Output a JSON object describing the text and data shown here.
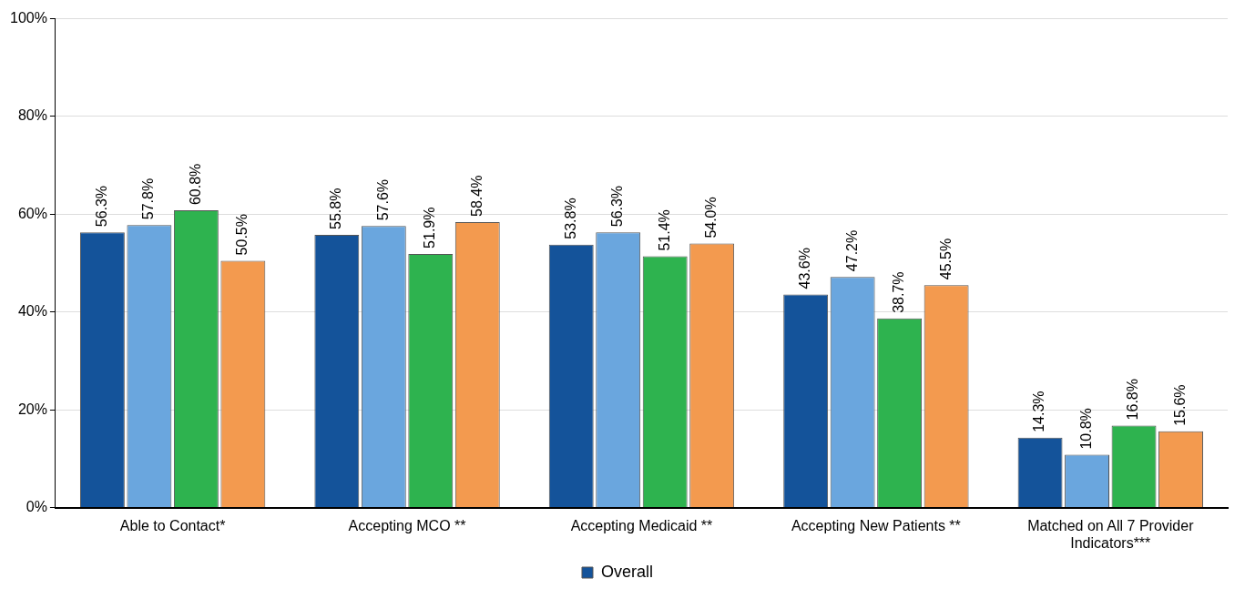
{
  "chart_data": {
    "type": "bar",
    "categories": [
      "Able to Contact*",
      "Accepting MCO **",
      "Accepting Medicaid **",
      "Accepting New Patients **",
      "Matched on All 7 Provider Indicators***"
    ],
    "series": [
      {
        "name": "Overall",
        "color": "#14539a",
        "values": [
          56.3,
          55.8,
          53.8,
          43.6,
          14.3
        ],
        "value_labels": [
          "56.3%",
          "55.8%",
          "53.8%",
          "43.6%",
          "14.3%"
        ]
      },
      {
        "color": "#6aa6de",
        "values": [
          57.8,
          57.6,
          56.3,
          47.2,
          10.8
        ],
        "value_labels": [
          "57.8%",
          "57.6%",
          "56.3%",
          "47.2%",
          "10.8%"
        ]
      },
      {
        "color": "#2eb34f",
        "values": [
          60.8,
          51.9,
          51.4,
          38.7,
          16.8
        ],
        "value_labels": [
          "60.8%",
          "51.9%",
          "51.4%",
          "38.7%",
          "16.8%"
        ]
      },
      {
        "color": "#f39a4f",
        "values": [
          50.5,
          58.4,
          54.0,
          45.5,
          15.6
        ],
        "value_labels": [
          "50.5%",
          "58.4%",
          "54.0%",
          "45.5%",
          "15.6%"
        ]
      }
    ],
    "ylim": [
      0,
      100
    ],
    "yticks": [
      {
        "value": 0,
        "label": "0%"
      },
      {
        "value": 20,
        "label": "20%"
      },
      {
        "value": 40,
        "label": "40%"
      },
      {
        "value": 60,
        "label": "60%"
      },
      {
        "value": 80,
        "label": "80%"
      },
      {
        "value": 100,
        "label": "100%"
      }
    ],
    "grid": "y",
    "legend": "bottom"
  }
}
